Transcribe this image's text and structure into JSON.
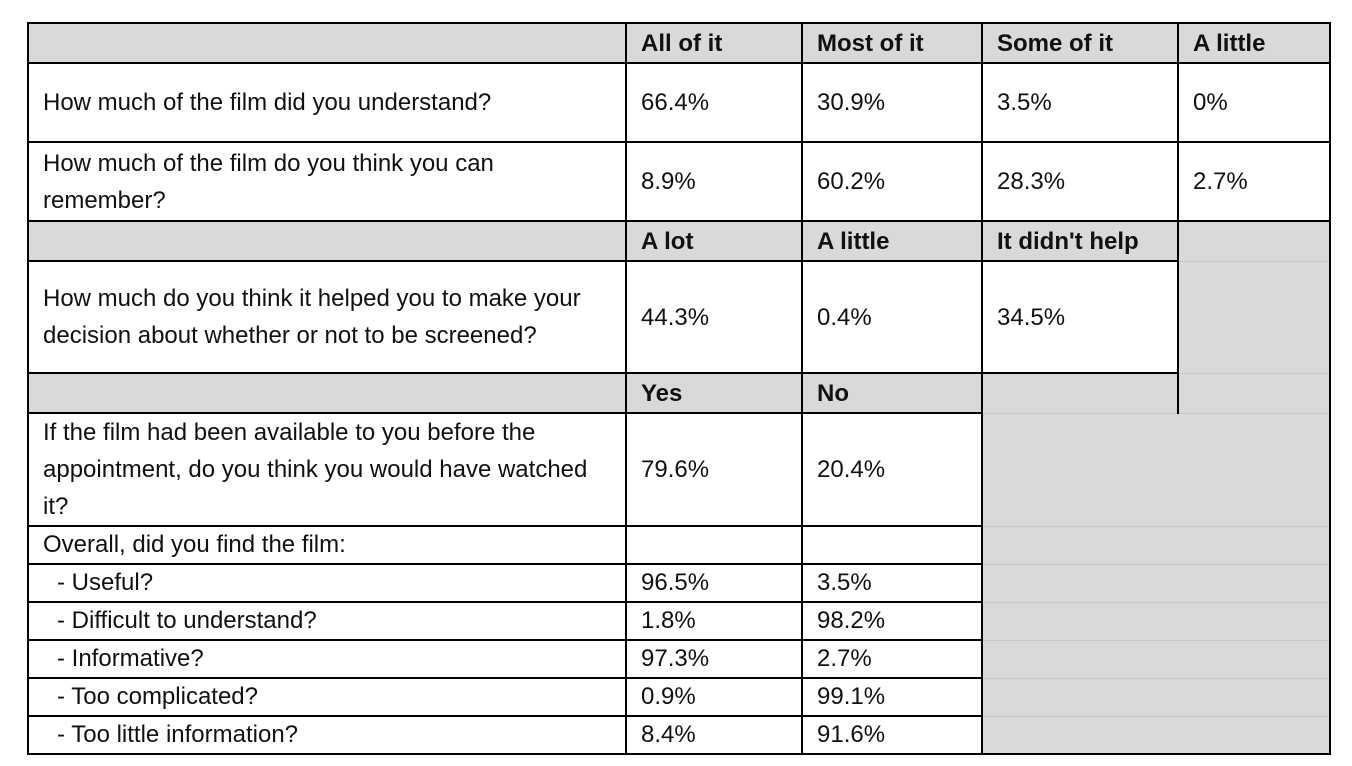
{
  "header_row_1": {
    "c1": "All of it",
    "c2": "Most of it",
    "c3": "Some of it",
    "c4": "A little"
  },
  "q_understand": {
    "label": "How much of the film did you understand?",
    "c1": "66.4%",
    "c2": "30.9%",
    "c3": "3.5%",
    "c4": "0%"
  },
  "q_remember": {
    "label": "How much of the film do you think you can remember?",
    "c1": "8.9%",
    "c2": "60.2%",
    "c3": "28.3%",
    "c4": "2.7%"
  },
  "header_row_2": {
    "c1": "A lot",
    "c2": "A little",
    "c3": "It didn't help"
  },
  "q_helped": {
    "label": "How much do you think it helped you to make your decision about whether or not to be screened?",
    "c1": "44.3%",
    "c2": "0.4%",
    "c3": "34.5%"
  },
  "header_row_3": {
    "c1": "Yes",
    "c2": "No"
  },
  "q_watched": {
    "label": "If the film had been available to you before the appointment, do you think you would have watched it?",
    "c1": "79.6%",
    "c2": "20.4%"
  },
  "overall": {
    "label": "Overall, did you find the film:",
    "items": [
      {
        "label": "- Useful?",
        "yes": "96.5%",
        "no": "3.5%"
      },
      {
        "label": "- Difficult to understand?",
        "yes": "1.8%",
        "no": "98.2%"
      },
      {
        "label": "- Informative?",
        "yes": "97.3%",
        "no": "2.7%"
      },
      {
        "label": "- Too complicated?",
        "yes": "0.9%",
        "no": "99.1%"
      },
      {
        "label": "- Too little information?",
        "yes": "8.4%",
        "no": "91.6%"
      }
    ]
  }
}
